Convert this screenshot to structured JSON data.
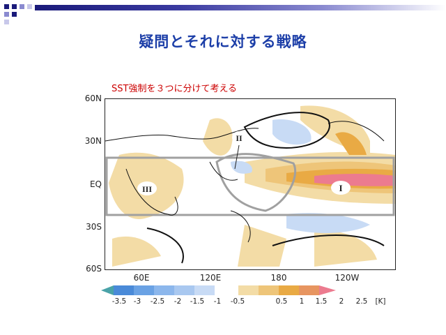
{
  "slide": {
    "title": "疑問とそれに対する戦略",
    "subtitle": "SST強制を３つに分けて考える"
  },
  "map": {
    "lat_labels": [
      "60N",
      "30N",
      "EQ",
      "30S",
      "60S"
    ],
    "lon_labels": [
      "60E",
      "120E",
      "180",
      "120W"
    ],
    "region_labels": [
      "I",
      "II",
      "III"
    ]
  },
  "colorbar": {
    "labels": [
      "-3.5",
      "-3",
      "-2.5",
      "-2",
      "-1.5",
      "-1",
      "-0.5",
      "0.5",
      "1",
      "1.5",
      "2",
      "2.5",
      "[K]"
    ],
    "neg_colors": [
      "#4aa3a8",
      "#4a8ad8",
      "#6aa2e4",
      "#8cb7ec",
      "#a9c8f0",
      "#c8dbf5"
    ],
    "pos_colors": [
      "#f3dca6",
      "#eec579",
      "#e9aa44",
      "#e79560",
      "#ec7b8f"
    ]
  }
}
